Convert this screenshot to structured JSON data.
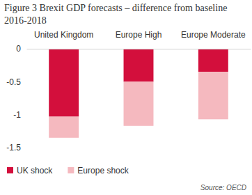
{
  "chart_data": {
    "type": "bar",
    "title": "Figure 3 Brexit GDP forecasts – difference from baseline 2016-2018",
    "categories": [
      "United Kingdom",
      "Europe High",
      "Europe Moderate"
    ],
    "series": [
      {
        "name": "UK shock",
        "color": "#d30f3c",
        "values": [
          -1.03,
          -0.5,
          -0.35
        ]
      },
      {
        "name": "Europe shock",
        "color": "#f5b9bf",
        "values": [
          -0.32,
          -0.67,
          -0.72
        ]
      }
    ],
    "stacked": true,
    "ylim": [
      -1.5,
      0
    ],
    "yticks": [
      -1.5,
      -1,
      -0.5,
      0
    ],
    "grid": false,
    "legend": "bottom",
    "annotations": [
      "Source: OECD"
    ]
  }
}
